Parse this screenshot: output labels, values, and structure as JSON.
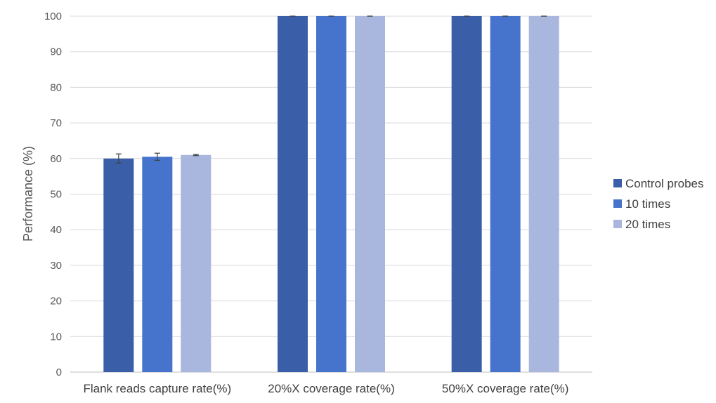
{
  "chart_data": {
    "type": "bar",
    "categories": [
      "Flank reads capture rate(%)",
      "20%X coverage rate(%)",
      "50%X coverage rate(%)"
    ],
    "series": [
      {
        "name": "Control probes",
        "values": [
          60,
          100,
          100
        ],
        "errors": [
          1.3,
          0,
          0
        ],
        "color": "#3a5ea8"
      },
      {
        "name": "10 times",
        "values": [
          60.5,
          100,
          100
        ],
        "errors": [
          1.0,
          0,
          0
        ],
        "color": "#4674cc"
      },
      {
        "name": "20 times",
        "values": [
          61,
          100,
          100
        ],
        "errors": [
          0.2,
          0,
          0
        ],
        "color": "#a9b6de"
      }
    ],
    "ylabel": "Performance (%)",
    "ylim": [
      0,
      100
    ],
    "yticks": [
      0,
      10,
      20,
      30,
      40,
      50,
      60,
      70,
      80,
      90,
      100
    ],
    "grid": true,
    "legend": "right"
  }
}
